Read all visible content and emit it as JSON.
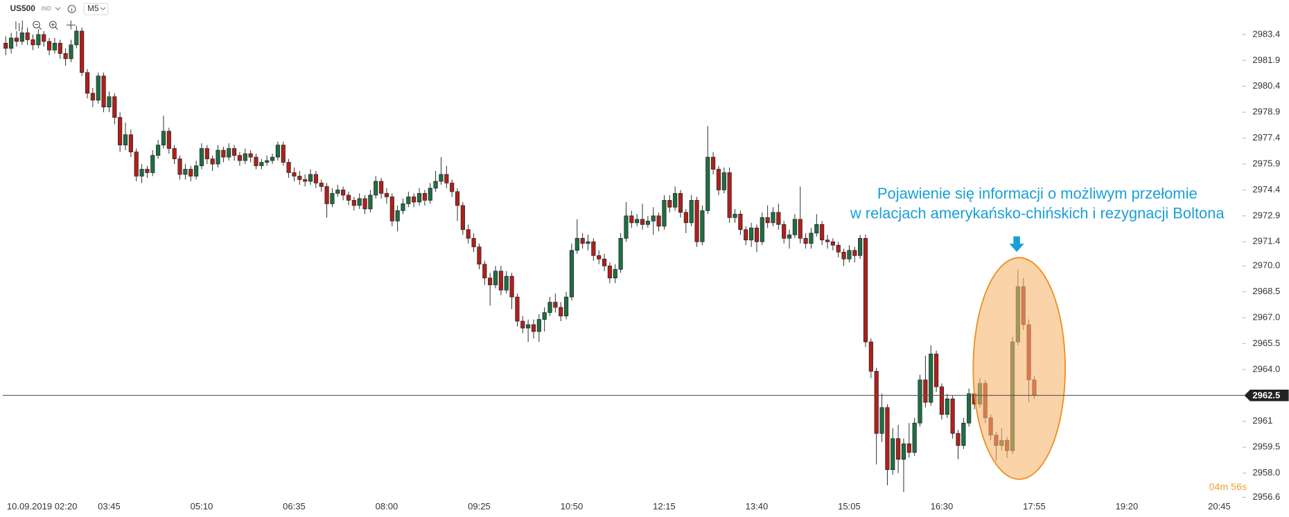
{
  "toolbar": {
    "symbol": "US500",
    "market": "IND",
    "timeframe": "M5"
  },
  "chart_data": {
    "type": "candlestick",
    "open": [
      2982.9,
      2982.6,
      2983.2,
      2983.0,
      2983.5,
      2983.1,
      2982.8,
      2983.4,
      2983.0,
      2982.5,
      2982.9,
      2982.3,
      2982.0,
      2982.8,
      2983.6,
      2981.2,
      2980.0,
      2979.6,
      2981.0,
      2979.2,
      2979.8,
      2978.6,
      2977.0,
      2977.6,
      2976.6,
      2975.2,
      2975.6,
      2975.4,
      2976.4,
      2977.0,
      2977.8,
      2976.8,
      2976.2,
      2975.3,
      2975.6,
      2975.2,
      2975.8,
      2976.8,
      2976.2,
      2975.9,
      2976.7,
      2976.3,
      2976.8,
      2976.4,
      2976.1,
      2976.5,
      2976.3,
      2975.8,
      2976.0,
      2976.1,
      2976.3,
      2977.0,
      2976.0,
      2975.4,
      2975.2,
      2975.0,
      2974.9,
      2975.3,
      2974.8,
      2974.6,
      2973.6,
      2974.2,
      2974.4,
      2974.1,
      2973.8,
      2973.5,
      2973.9,
      2973.3,
      2974.1,
      2974.9,
      2974.2,
      2974.0,
      2972.6,
      2973.2,
      2973.6,
      2974.0,
      2973.7,
      2974.2,
      2973.8,
      2974.5,
      2974.9,
      2975.3,
      2974.8,
      2974.3,
      2973.5,
      2972.1,
      2971.6,
      2971.1,
      2970.1,
      2969.3,
      2968.9,
      2969.7,
      2968.6,
      2969.4,
      2968.2,
      2966.8,
      2966.4,
      2966.6,
      2966.2,
      2966.9,
      2967.3,
      2967.9,
      2967.6,
      2967.1,
      2968.2,
      2970.9,
      2971.6,
      2971.3,
      2971.4,
      2970.6,
      2970.4,
      2970.0,
      2969.3,
      2969.8,
      2971.6,
      2972.9,
      2972.5,
      2972.7,
      2972.4,
      2972.6,
      2972.9,
      2972.3,
      2973.8,
      2973.4,
      2974.2,
      2973.1,
      2972.5,
      2973.8,
      2971.4,
      2973.2,
      2976.3,
      2975.6,
      2974.4,
      2975.4,
      2972.8,
      2973.0,
      2972.1,
      2971.5,
      2972.2,
      2971.4,
      2972.8,
      2972.5,
      2973.1,
      2972.4,
      2971.6,
      2971.8,
      2972.7,
      2971.6,
      2971.3,
      2971.9,
      2972.4,
      2971.5,
      2971.4,
      2971.2,
      2970.8,
      2970.4,
      2970.9,
      2970.6,
      2971.6,
      2965.6,
      2963.9,
      2960.3,
      2961.8,
      2958.2,
      2960.0,
      2958.8,
      2959.7,
      2959.2,
      2960.9,
      2963.4,
      2962.1,
      2964.9,
      2963.0,
      2961.4,
      2962.3,
      2960.3,
      2959.6,
      2960.9,
      2962.6,
      2962.0,
      2963.2,
      2961.2,
      2960.2,
      2959.6,
      2959.9,
      2959.3,
      2965.6,
      2968.8,
      2966.6,
      2963.4
    ],
    "high": [
      2983.3,
      2983.5,
      2983.6,
      2983.8,
      2983.8,
      2983.4,
      2983.7,
      2983.6,
      2983.2,
      2983.2,
      2983.1,
      2982.6,
      2983.1,
      2983.9,
      2983.8,
      2981.4,
      2980.3,
      2981.2,
      2981.2,
      2980.1,
      2980.0,
      2978.9,
      2978.3,
      2977.9,
      2976.8,
      2975.9,
      2975.8,
      2976.7,
      2977.3,
      2978.7,
      2978.0,
      2977.0,
      2976.4,
      2975.9,
      2975.8,
      2976.1,
      2977.1,
      2977.0,
      2976.4,
      2977.0,
      2976.9,
      2977.1,
      2977.0,
      2976.6,
      2976.8,
      2976.7,
      2976.5,
      2976.2,
      2976.4,
      2976.5,
      2977.2,
      2977.2,
      2976.2,
      2975.7,
      2975.5,
      2975.3,
      2975.6,
      2975.5,
      2975.0,
      2974.8,
      2974.5,
      2974.7,
      2974.6,
      2974.3,
      2974.0,
      2974.2,
      2974.1,
      2974.4,
      2975.2,
      2975.1,
      2974.5,
      2974.2,
      2973.5,
      2973.9,
      2974.3,
      2974.2,
      2974.5,
      2974.4,
      2974.8,
      2975.5,
      2976.3,
      2975.8,
      2975.0,
      2974.5,
      2973.7,
      2972.4,
      2971.9,
      2971.3,
      2970.3,
      2969.6,
      2970.0,
      2970.0,
      2969.7,
      2969.6,
      2968.4,
      2967.1,
      2966.9,
      2966.9,
      2967.2,
      2967.6,
      2968.2,
      2968.4,
      2967.9,
      2968.5,
      2971.3,
      2972.7,
      2971.9,
      2971.8,
      2971.6,
      2970.9,
      2970.7,
      2970.2,
      2970.1,
      2971.9,
      2973.7,
      2973.2,
      2973.0,
      2973.6,
      2972.9,
      2973.4,
      2973.1,
      2974.1,
      2974.1,
      2974.6,
      2974.4,
      2973.3,
      2974.1,
      2974.0,
      2973.5,
      2978.1,
      2976.6,
      2975.8,
      2975.7,
      2975.7,
      2973.3,
      2973.2,
      2972.3,
      2972.5,
      2972.4,
      2973.1,
      2973.5,
      2973.4,
      2973.6,
      2972.6,
      2972.1,
      2973.0,
      2974.6,
      2971.9,
      2972.2,
      2973.0,
      2972.6,
      2971.8,
      2971.6,
      2971.4,
      2971.0,
      2971.2,
      2971.1,
      2971.8,
      2971.8,
      2965.8,
      2964.1,
      2962.6,
      2962.0,
      2960.6,
      2960.8,
      2960.0,
      2960.9,
      2961.2,
      2963.7,
      2964.8,
      2965.4,
      2965.1,
      2963.2,
      2962.6,
      2962.5,
      2960.5,
      2961.2,
      2962.9,
      2962.8,
      2963.5,
      2963.4,
      2961.4,
      2960.4,
      2960.6,
      2960.1,
      2965.9,
      2969.8,
      2969.3,
      2966.9,
      2963.6
    ],
    "low": [
      2982.2,
      2982.3,
      2982.7,
      2982.8,
      2982.8,
      2982.5,
      2982.6,
      2982.7,
      2982.2,
      2982.3,
      2982.0,
      2981.6,
      2981.8,
      2982.6,
      2981.0,
      2979.7,
      2979.2,
      2979.4,
      2978.9,
      2978.9,
      2978.2,
      2976.6,
      2976.7,
      2976.3,
      2974.9,
      2974.8,
      2975.1,
      2975.2,
      2976.2,
      2976.8,
      2976.5,
      2975.9,
      2975.0,
      2975.0,
      2974.9,
      2975.0,
      2975.6,
      2975.9,
      2975.5,
      2975.7,
      2976.0,
      2976.1,
      2976.1,
      2975.8,
      2975.9,
      2976.0,
      2975.6,
      2975.6,
      2975.8,
      2975.9,
      2976.1,
      2975.8,
      2975.1,
      2974.9,
      2974.7,
      2974.6,
      2974.7,
      2974.5,
      2974.3,
      2972.8,
      2973.4,
      2974.0,
      2973.8,
      2973.5,
      2973.2,
      2973.3,
      2973.0,
      2973.1,
      2973.9,
      2973.9,
      2973.6,
      2972.3,
      2972.0,
      2973.0,
      2973.4,
      2973.4,
      2973.5,
      2973.5,
      2973.6,
      2974.3,
      2974.7,
      2974.5,
      2974.0,
      2972.6,
      2971.8,
      2971.3,
      2970.8,
      2969.8,
      2968.9,
      2967.7,
      2968.7,
      2968.3,
      2968.4,
      2967.5,
      2966.5,
      2966.1,
      2965.6,
      2965.8,
      2965.6,
      2966.2,
      2967.1,
      2967.3,
      2966.8,
      2966.9,
      2968.0,
      2970.7,
      2971.0,
      2970.9,
      2970.3,
      2970.1,
      2969.7,
      2969.0,
      2969.0,
      2969.6,
      2971.4,
      2972.2,
      2972.3,
      2972.1,
      2972.2,
      2971.8,
      2972.0,
      2972.1,
      2973.1,
      2973.2,
      2972.8,
      2971.9,
      2972.3,
      2971.1,
      2971.2,
      2973.0,
      2975.3,
      2974.1,
      2974.2,
      2972.5,
      2972.5,
      2971.8,
      2971.2,
      2971.1,
      2970.8,
      2971.2,
      2972.2,
      2972.3,
      2972.1,
      2971.3,
      2971.0,
      2971.6,
      2971.3,
      2971.0,
      2971.0,
      2971.7,
      2971.2,
      2971.0,
      2970.9,
      2970.5,
      2970.0,
      2970.2,
      2970.2,
      2970.4,
      2965.3,
      2963.5,
      2958.5,
      2959.8,
      2957.3,
      2957.9,
      2958.0,
      2956.9,
      2958.9,
      2959.0,
      2960.7,
      2961.8,
      2961.9,
      2962.7,
      2961.1,
      2961.2,
      2960.0,
      2958.8,
      2959.4,
      2960.7,
      2961.7,
      2961.8,
      2960.9,
      2959.9,
      2958.7,
      2959.3,
      2958.9,
      2959.1,
      2965.4,
      2966.3,
      2962.1,
      2962.3
    ],
    "close": [
      2982.6,
      2983.2,
      2983.0,
      2983.5,
      2983.1,
      2982.8,
      2983.4,
      2983.0,
      2982.5,
      2982.9,
      2982.3,
      2982.0,
      2982.8,
      2983.6,
      2981.2,
      2980.0,
      2979.6,
      2981.0,
      2979.2,
      2979.8,
      2978.6,
      2977.0,
      2977.6,
      2976.6,
      2975.2,
      2975.6,
      2975.4,
      2976.4,
      2977.0,
      2977.8,
      2976.8,
      2976.2,
      2975.3,
      2975.6,
      2975.2,
      2975.8,
      2976.8,
      2976.2,
      2975.9,
      2976.7,
      2976.3,
      2976.8,
      2976.4,
      2976.1,
      2976.5,
      2976.3,
      2975.8,
      2976.0,
      2976.1,
      2976.3,
      2977.0,
      2976.0,
      2975.4,
      2975.2,
      2975.0,
      2974.9,
      2975.3,
      2974.8,
      2974.6,
      2973.6,
      2974.2,
      2974.4,
      2974.1,
      2973.8,
      2973.5,
      2973.9,
      2973.3,
      2974.1,
      2974.9,
      2974.2,
      2974.0,
      2972.6,
      2973.2,
      2973.6,
      2974.0,
      2973.7,
      2974.2,
      2973.8,
      2974.5,
      2974.9,
      2975.3,
      2974.8,
      2974.3,
      2973.5,
      2972.1,
      2971.6,
      2971.1,
      2970.1,
      2969.3,
      2968.9,
      2969.7,
      2968.6,
      2969.4,
      2968.2,
      2966.8,
      2966.4,
      2966.6,
      2966.2,
      2966.9,
      2967.3,
      2967.9,
      2967.6,
      2967.1,
      2968.2,
      2970.9,
      2971.6,
      2971.3,
      2971.4,
      2970.6,
      2970.4,
      2970.0,
      2969.3,
      2969.8,
      2971.6,
      2972.9,
      2972.5,
      2972.7,
      2972.4,
      2972.6,
      2972.9,
      2972.3,
      2973.8,
      2973.4,
      2974.2,
      2973.1,
      2972.5,
      2973.8,
      2971.4,
      2973.2,
      2976.3,
      2975.6,
      2974.4,
      2975.4,
      2972.8,
      2973.0,
      2972.1,
      2971.5,
      2972.2,
      2971.4,
      2972.8,
      2972.5,
      2973.1,
      2972.4,
      2971.6,
      2971.8,
      2972.7,
      2971.6,
      2971.3,
      2971.9,
      2972.4,
      2971.5,
      2971.4,
      2971.2,
      2970.8,
      2970.4,
      2970.9,
      2970.6,
      2971.6,
      2965.6,
      2963.9,
      2960.3,
      2961.8,
      2958.2,
      2960.0,
      2958.8,
      2959.7,
      2959.2,
      2960.9,
      2963.4,
      2962.1,
      2964.9,
      2963.0,
      2961.4,
      2962.3,
      2960.3,
      2959.6,
      2960.9,
      2962.6,
      2962.0,
      2963.2,
      2961.2,
      2960.2,
      2959.6,
      2959.9,
      2959.3,
      2965.6,
      2968.8,
      2966.6,
      2963.4,
      2962.5
    ],
    "up_color": "#1f6e43",
    "down_color": "#b0201c",
    "xlim": [
      -1,
      227
    ],
    "xticks": [
      {
        "value": 2,
        "label": "10.09.2019 02:20"
      },
      {
        "value": 19,
        "label": "03:45"
      },
      {
        "value": 36,
        "label": "05:10"
      },
      {
        "value": 53,
        "label": "06:35"
      },
      {
        "value": 70,
        "label": "08:00"
      },
      {
        "value": 87,
        "label": "09:25"
      },
      {
        "value": 104,
        "label": "10:50"
      },
      {
        "value": 121,
        "label": "12:15"
      },
      {
        "value": 138,
        "label": "13:40"
      },
      {
        "value": 155,
        "label": "15:05"
      },
      {
        "value": 172,
        "label": "16:30"
      },
      {
        "value": 189,
        "label": "17:55"
      },
      {
        "value": 206,
        "label": "19:20"
      },
      {
        "value": 223,
        "label": "20:45"
      }
    ],
    "ylim": [
      2956.6,
      2985.4
    ],
    "yticks": [
      2983.4,
      2981.9,
      2980.4,
      2978.9,
      2977.4,
      2975.9,
      2974.4,
      2972.9,
      2971.4,
      {
        "value": 2970,
        "label": "2970.0"
      },
      2968.5,
      {
        "value": 2967,
        "label": "2967.0"
      },
      2965.5,
      {
        "value": 2964,
        "label": "2964.0"
      },
      2961,
      2959.5,
      {
        "value": 2958,
        "label": "2958.0"
      },
      2956.6
    ],
    "current_price": 2962.5,
    "annotation": {
      "lines": [
        "Pojawienie się informacji o możliwym przełomie",
        "w relacjach amerykańsko-chińskich i rezygnacji Boltona"
      ],
      "color": "#1a9fd6"
    },
    "countdown": "04m 56s"
  }
}
